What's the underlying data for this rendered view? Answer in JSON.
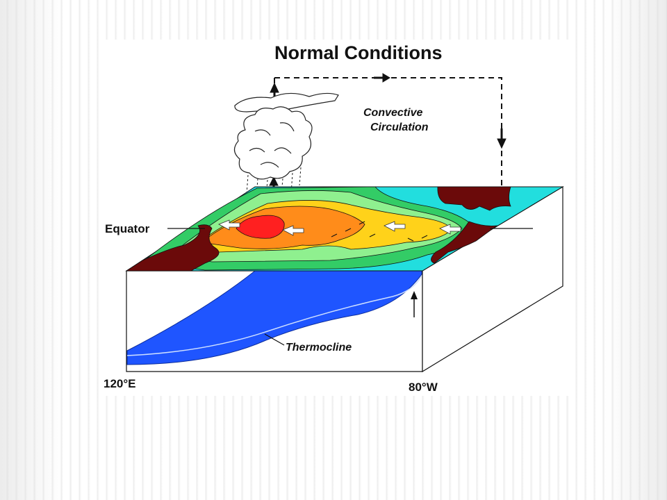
{
  "title": "Normal Conditions",
  "labels": {
    "circulation_line1": "Convective",
    "circulation_line2": "Circulation",
    "equator": "Equator",
    "thermocline": "Thermocline",
    "west_longitude": "120°E",
    "east_longitude": "80°W"
  },
  "colors": {
    "warm_core": "#ff2020",
    "warm": "#ff8c1a",
    "mid": "#ffd21a",
    "cool": "#8ff08f",
    "cold": "#33cc66",
    "coldest": "#22dede",
    "land": "#6b0a0a",
    "deep_ocean": "#1f55ff"
  }
}
